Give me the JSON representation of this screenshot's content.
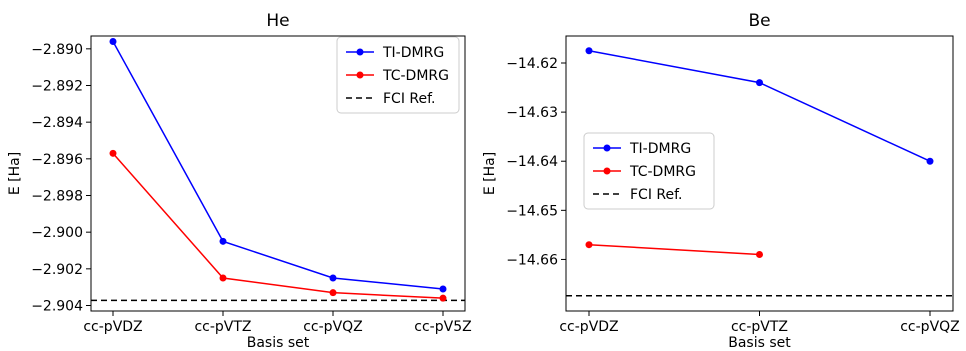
{
  "chart_data": [
    {
      "type": "line",
      "title": "He",
      "xlabel": "Basis set",
      "ylabel": "E [Ha]",
      "categories": [
        "cc-pVDZ",
        "cc-pVTZ",
        "cc-pVQZ",
        "cc-pV5Z"
      ],
      "ylim": [
        -2.9043,
        -2.8893
      ],
      "yticks": [
        -2.89,
        -2.892,
        -2.894,
        -2.896,
        -2.898,
        -2.9,
        -2.902,
        -2.904
      ],
      "ytick_labels": [
        "−2.890",
        "−2.892",
        "−2.894",
        "−2.896",
        "−2.898",
        "−2.900",
        "−2.902",
        "−2.904"
      ],
      "legend_position": "top-right",
      "series": [
        {
          "name": "TI-DMRG",
          "color": "#0000ff",
          "values": [
            -2.8896,
            -2.9005,
            -2.9025,
            -2.9031
          ]
        },
        {
          "name": "TC-DMRG",
          "color": "#ff0000",
          "values": [
            -2.8957,
            -2.9025,
            -2.9033,
            -2.9036
          ]
        }
      ],
      "reference": {
        "name": "FCI Ref.",
        "value": -2.90372,
        "color": "#000000",
        "style": "dashed"
      }
    },
    {
      "type": "line",
      "title": "Be",
      "xlabel": "Basis set",
      "ylabel": "E [Ha]",
      "categories": [
        "cc-pVDZ",
        "cc-pVTZ",
        "cc-pVQZ"
      ],
      "ylim": [
        -14.6705,
        -14.6145
      ],
      "yticks": [
        -14.62,
        -14.63,
        -14.64,
        -14.65,
        -14.66
      ],
      "ytick_labels": [
        "−14.62",
        "−14.63",
        "−14.64",
        "−14.65",
        "−14.66"
      ],
      "legend_position": "center-left",
      "series": [
        {
          "name": "TI-DMRG",
          "color": "#0000ff",
          "values": [
            -14.6175,
            -14.624,
            -14.64
          ]
        },
        {
          "name": "TC-DMRG",
          "color": "#ff0000",
          "values": [
            -14.657,
            -14.659,
            null
          ]
        }
      ],
      "reference": {
        "name": "FCI Ref.",
        "value": -14.6674,
        "color": "#000000",
        "style": "dashed"
      }
    }
  ]
}
